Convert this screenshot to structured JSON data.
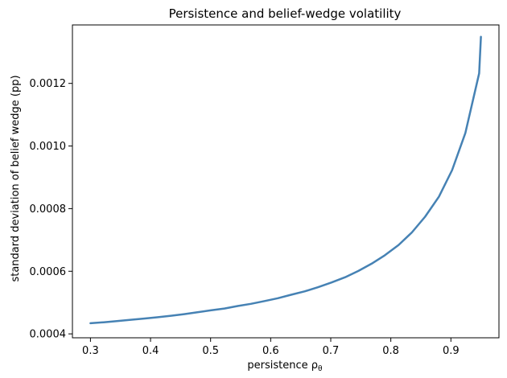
{
  "chart_data": {
    "type": "line",
    "title": "Persistence and belief-wedge volatility",
    "xlabel": "persistence ρ",
    "xlabel_subscript": "θ",
    "ylabel": "standard deviation of belief wedge (pp)",
    "xlim": [
      0.27,
      0.98
    ],
    "ylim": [
      0.0003875,
      0.0013867
    ],
    "xticks": [
      0.3,
      0.4,
      0.5,
      0.6,
      0.7,
      0.8,
      0.9
    ],
    "xtick_labels": [
      "0.3",
      "0.4",
      "0.5",
      "0.6",
      "0.7",
      "0.8",
      "0.9"
    ],
    "yticks": [
      0.0004,
      0.0006,
      0.0008,
      0.001,
      0.0012
    ],
    "ytick_labels": [
      "0.0004",
      "0.0006",
      "0.0008",
      "0.0010",
      "0.0012"
    ],
    "grid": false,
    "line_color": "#4682b4",
    "series": [
      {
        "x": [
          0.3,
          0.322,
          0.344,
          0.367,
          0.389,
          0.411,
          0.434,
          0.456,
          0.478,
          0.5,
          0.523,
          0.545,
          0.567,
          0.59,
          0.612,
          0.634,
          0.657,
          0.679,
          0.701,
          0.724,
          0.746,
          0.768,
          0.79,
          0.813,
          0.835,
          0.857,
          0.88,
          0.902,
          0.924,
          0.947,
          0.95
        ],
        "y": [
          0.000434,
          0.000437,
          0.000441,
          0.000445,
          0.000449,
          0.000453,
          0.000458,
          0.000463,
          0.000469,
          0.000475,
          0.000481,
          0.000489,
          0.000496,
          0.000505,
          0.000514,
          0.000525,
          0.000536,
          0.000549,
          0.000564,
          0.000581,
          0.000601,
          0.000624,
          0.000651,
          0.000684,
          0.000724,
          0.000774,
          0.000838,
          0.000923,
          0.001041,
          0.001232,
          0.001349
        ]
      }
    ]
  }
}
